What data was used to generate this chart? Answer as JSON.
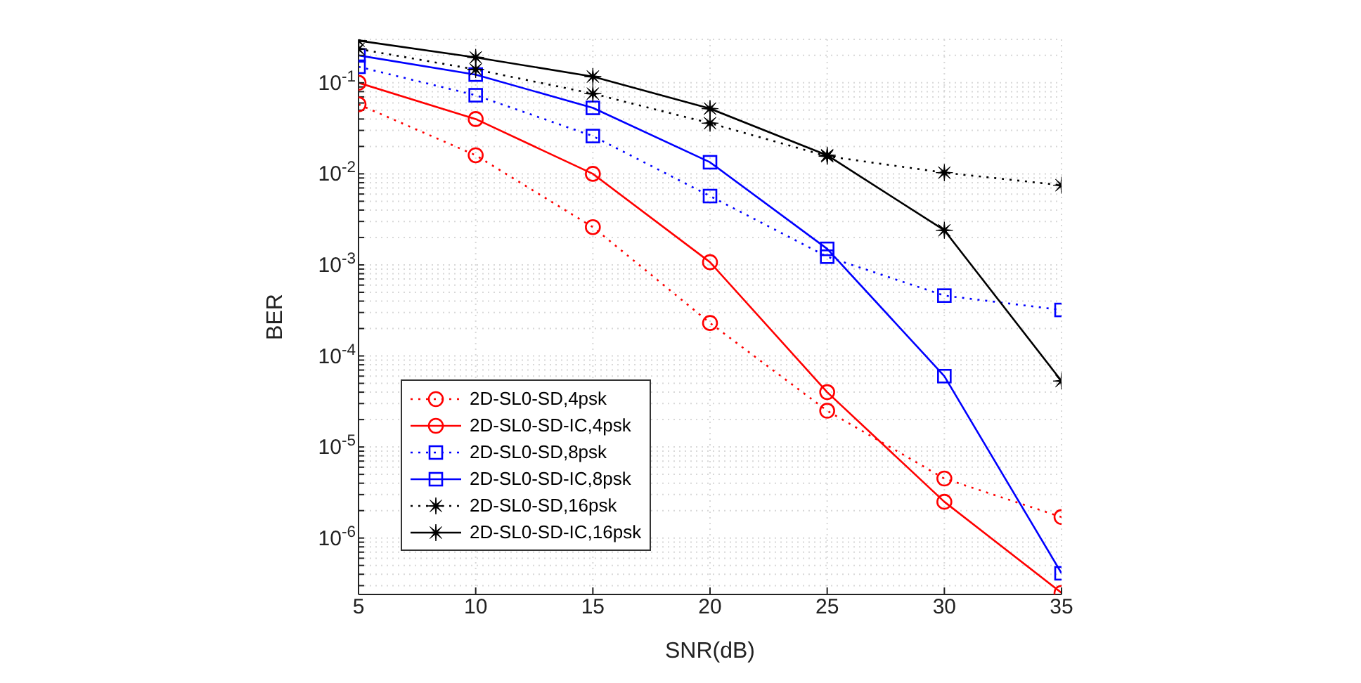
{
  "chart_data": {
    "type": "line",
    "xlabel": "SNR(dB)",
    "ylabel": "BER",
    "log": "y",
    "grid": true,
    "legend": "bottom left",
    "x": [
      5,
      10,
      15,
      20,
      25,
      30,
      35
    ],
    "xlim": [
      5,
      35
    ],
    "xticks": [
      5,
      10,
      15,
      20,
      25,
      30,
      35
    ],
    "ylim": [
      2.4e-07,
      0.3
    ],
    "yticks": [
      {
        "value": 3e-07,
        "label": null
      },
      {
        "value": 4e-07,
        "label": null
      },
      {
        "value": 5e-07,
        "label": null
      },
      {
        "value": 6e-07,
        "label": null
      },
      {
        "value": 7e-07,
        "label": null
      },
      {
        "value": 8e-07,
        "label": null
      },
      {
        "value": 9e-07,
        "label": null
      },
      {
        "value": 1e-06,
        "label": "10$^{-6}$"
      },
      {
        "value": 2e-06,
        "label": null
      },
      {
        "value": 3e-06,
        "label": null
      },
      {
        "value": 4e-06,
        "label": null
      },
      {
        "value": 5e-06,
        "label": null
      },
      {
        "value": 6e-06,
        "label": null
      },
      {
        "value": 7e-06,
        "label": null
      },
      {
        "value": 8e-06,
        "label": null
      },
      {
        "value": 9e-06,
        "label": null
      },
      {
        "value": 1e-05,
        "label": "10$^{-5}$"
      },
      {
        "value": 2e-05,
        "label": null
      },
      {
        "value": 3e-05,
        "label": null
      },
      {
        "value": 4e-05,
        "label": null
      },
      {
        "value": 5e-05,
        "label": null
      },
      {
        "value": 6e-05,
        "label": null
      },
      {
        "value": 7e-05,
        "label": null
      },
      {
        "value": 8e-05,
        "label": null
      },
      {
        "value": 9e-05,
        "label": null
      },
      {
        "value": 0.0001,
        "label": "10$^{-4}$"
      },
      {
        "value": 0.0002,
        "label": null
      },
      {
        "value": 0.0003,
        "label": null
      },
      {
        "value": 0.0004,
        "label": null
      },
      {
        "value": 0.0005,
        "label": null
      },
      {
        "value": 0.0006,
        "label": null
      },
      {
        "value": 0.0007,
        "label": null
      },
      {
        "value": 0.0008,
        "label": null
      },
      {
        "value": 0.0009,
        "label": null
      },
      {
        "value": 0.001,
        "label": "10$^{-3}$"
      },
      {
        "value": 0.002,
        "label": null
      },
      {
        "value": 0.003,
        "label": null
      },
      {
        "value": 0.004,
        "label": null
      },
      {
        "value": 0.005,
        "label": null
      },
      {
        "value": 0.006,
        "label": null
      },
      {
        "value": 0.007,
        "label": null
      },
      {
        "value": 0.008,
        "label": null
      },
      {
        "value": 0.009,
        "label": null
      },
      {
        "value": 0.01,
        "label": "10$^{-2}$"
      },
      {
        "value": 0.02,
        "label": null
      },
      {
        "value": 0.03,
        "label": null
      },
      {
        "value": 0.04,
        "label": null
      },
      {
        "value": 0.05,
        "label": null
      },
      {
        "value": 0.06,
        "label": null
      },
      {
        "value": 0.07,
        "label": null
      },
      {
        "value": 0.08,
        "label": null
      },
      {
        "value": 0.09,
        "label": null
      },
      {
        "value": 0.1,
        "label": "10$^{-1}$"
      },
      {
        "value": 0.2,
        "label": null
      }
    ],
    "series": [
      {
        "name": "2D-SL0-SD,4psk",
        "color": "#ff0000",
        "marker": "circle",
        "line_style": "dotted",
        "values": [
          0.058,
          0.016,
          0.0026,
          0.00023,
          2.5e-05,
          4.5e-06,
          1.7e-06
        ]
      },
      {
        "name": "2D-SL0-SD-IC,4psk",
        "color": "#ff0000",
        "marker": "circle",
        "line_style": "solid",
        "values": [
          0.1,
          0.04,
          0.01,
          0.00107,
          4e-05,
          2.5e-06,
          2.5e-07
        ]
      },
      {
        "name": "2D-SL0-SD,8psk",
        "color": "#0000ff",
        "marker": "square",
        "line_style": "dotted",
        "values": [
          0.15,
          0.073,
          0.026,
          0.0057,
          0.00123,
          0.00046,
          0.00032
        ]
      },
      {
        "name": "2D-SL0-SD-IC,8psk",
        "color": "#0000ff",
        "marker": "square",
        "line_style": "solid",
        "values": [
          0.2,
          0.123,
          0.053,
          0.0134,
          0.0015,
          6e-05,
          4.1e-07
        ]
      },
      {
        "name": "2D-SL0-SD,16psk",
        "color": "#000000",
        "marker": "star",
        "line_style": "dotted",
        "values": [
          0.235,
          0.14,
          0.076,
          0.036,
          0.0156,
          0.0103,
          0.0075
        ]
      },
      {
        "name": "2D-SL0-SD-IC,16psk",
        "color": "#000000",
        "marker": "star",
        "line_style": "solid",
        "values": [
          0.29,
          0.19,
          0.117,
          0.052,
          0.016,
          0.0024,
          5.3e-05
        ]
      }
    ]
  }
}
